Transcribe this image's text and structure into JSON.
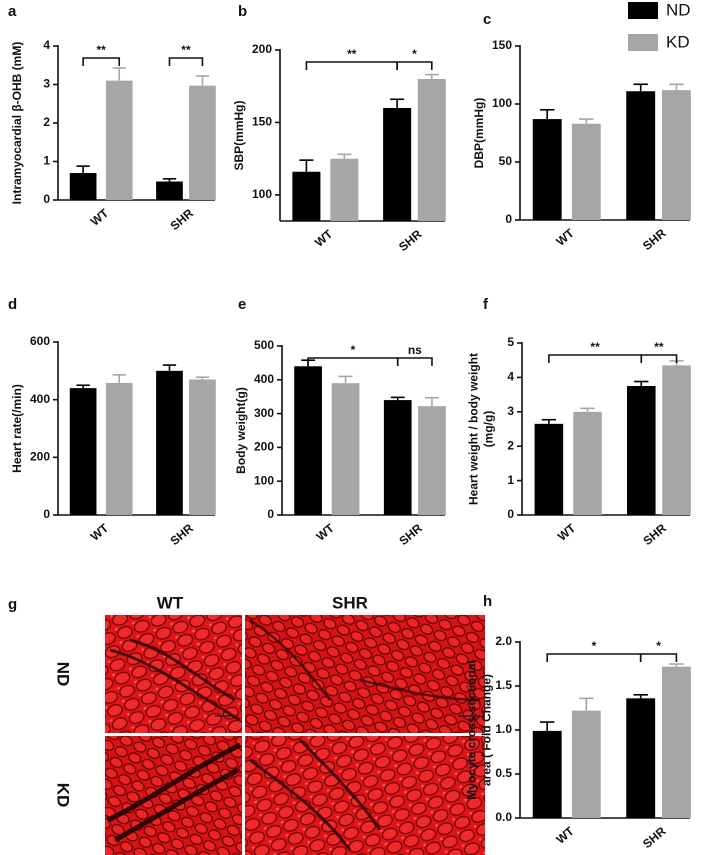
{
  "legend": [
    {
      "name": "ND",
      "color": "#000000"
    },
    {
      "name": "KD",
      "color": "#a6a6a6"
    }
  ],
  "chart_data": [
    {
      "type": "bar",
      "label": "a",
      "ylabel": [
        "Intramyocardial β-OHB (mM)"
      ],
      "categories": [
        "WT",
        "SHR"
      ],
      "series": [
        {
          "values": [
            0.7,
            0.48
          ],
          "errors": [
            0.18,
            0.07
          ]
        },
        {
          "values": [
            3.1,
            2.97
          ],
          "errors": [
            0.33,
            0.25
          ]
        }
      ],
      "ylim": [
        0,
        4
      ],
      "yticks": [
        0,
        1,
        2,
        3,
        4
      ],
      "annotations": [
        "**",
        "**"
      ]
    },
    {
      "type": "bar",
      "label": "b",
      "ylabel": [
        "SBP(mmHg)"
      ],
      "categories": [
        "WT",
        "SHR"
      ],
      "series": [
        {
          "values": [
            116,
            160
          ],
          "errors": [
            8,
            6
          ]
        },
        {
          "values": [
            125,
            180
          ],
          "errors": [
            3,
            3
          ]
        }
      ],
      "ylim": [
        82,
        200
      ],
      "yticks": [
        100,
        150,
        200
      ],
      "annotations": [
        "**",
        "*"
      ]
    },
    {
      "type": "bar",
      "label": "c",
      "ylabel": [
        "DBP(mmHg)"
      ],
      "categories": [
        "WT",
        "SHR"
      ],
      "series": [
        {
          "values": [
            87,
            111
          ],
          "errors": [
            8,
            6
          ]
        },
        {
          "values": [
            83,
            112
          ],
          "errors": [
            4,
            5
          ]
        }
      ],
      "ylim": [
        0,
        150
      ],
      "yticks": [
        0,
        50,
        100,
        150
      ],
      "annotations": []
    },
    {
      "type": "bar",
      "label": "d",
      "ylabel": [
        "Heart rate(/min)"
      ],
      "categories": [
        "WT",
        "SHR"
      ],
      "series": [
        {
          "values": [
            440,
            500
          ],
          "errors": [
            10,
            20
          ]
        },
        {
          "values": [
            458,
            470
          ],
          "errors": [
            28,
            8
          ]
        }
      ],
      "ylim": [
        0,
        600
      ],
      "yticks": [
        0,
        200,
        400,
        600
      ],
      "annotations": []
    },
    {
      "type": "bar",
      "label": "e",
      "ylabel": [
        "Body weight(g)"
      ],
      "categories": [
        "WT",
        "SHR"
      ],
      "series": [
        {
          "values": [
            440,
            340
          ],
          "errors": [
            18,
            8
          ]
        },
        {
          "values": [
            390,
            322
          ],
          "errors": [
            20,
            25
          ]
        }
      ],
      "ylim": [
        0,
        500
      ],
      "yticks": [
        0,
        100,
        200,
        300,
        400,
        500
      ],
      "annotations": [
        "*",
        "ns"
      ]
    },
    {
      "type": "bar",
      "label": "f",
      "ylabel": [
        "Heart weight / body weight",
        "(mg/g)"
      ],
      "categories": [
        "WT",
        "SHR"
      ],
      "series": [
        {
          "values": [
            2.65,
            3.75
          ],
          "errors": [
            0.12,
            0.13
          ]
        },
        {
          "values": [
            3.0,
            4.35
          ],
          "errors": [
            0.1,
            0.13
          ]
        }
      ],
      "ylim": [
        0,
        5
      ],
      "yticks": [
        0,
        1,
        2,
        3,
        4,
        5
      ],
      "annotations": [
        "**",
        "**"
      ]
    },
    {
      "type": "bar",
      "label": "h",
      "ylabel": [
        "Myocyte cross-sectional",
        "area ( Fold Change)"
      ],
      "categories": [
        "WT",
        "SHR"
      ],
      "series": [
        {
          "values": [
            0.99,
            1.36
          ],
          "errors": [
            0.1,
            0.04
          ]
        },
        {
          "values": [
            1.22,
            1.72
          ],
          "errors": [
            0.14,
            0.03
          ]
        }
      ],
      "ylim": [
        0,
        2
      ],
      "yticks": [
        {
          "value": 0,
          "label": "0.0"
        },
        {
          "value": 0.5,
          "label": "0.5"
        },
        {
          "value": 1,
          "label": "1.0"
        },
        {
          "value": 1.5,
          "label": "1.5"
        },
        {
          "value": 2,
          "label": "2.0"
        }
      ],
      "annotations": [
        "*",
        "*"
      ]
    }
  ],
  "image_panel": {
    "label": "g",
    "columns": [
      "WT",
      "SHR"
    ],
    "rows": [
      "ND",
      "KD"
    ]
  }
}
